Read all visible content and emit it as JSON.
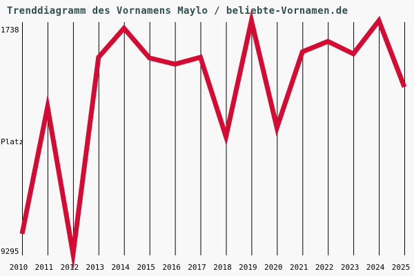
{
  "title": "Trenddiagramm des Vornamens Maylo / beliebte-Vornamen.de",
  "source_site": "beliebte-Vornamen.de",
  "name_shown": "Maylo",
  "colors": {
    "background": "#f8f8f8",
    "line": "#d40b33",
    "title_text": "#2f4f4f",
    "axis_text": "#000000",
    "gridline": "#000000"
  },
  "y_axis": {
    "top_label": "1738",
    "mid_label": "Platz",
    "bottom_label": "9295"
  },
  "chart_data": {
    "type": "line",
    "title": "Trenddiagramm des Vornamens Maylo / beliebte-Vornamen.de",
    "xlabel": "",
    "ylabel": "Platz",
    "x": [
      2010,
      2011,
      2012,
      2013,
      2014,
      2015,
      2016,
      2017,
      2018,
      2019,
      2020,
      2021,
      2022,
      2023,
      2024,
      2025
    ],
    "series": [
      {
        "name": "Maylo",
        "values": [
          8645,
          4533,
          9295,
          2923,
          1984,
          2945,
          3147,
          2923,
          5495,
          1738,
          5204,
          2744,
          2409,
          2811,
          1738,
          3885
        ]
      }
    ],
    "ylim": [
      1738,
      9295
    ],
    "y_axis_inverted_best_rank_on_top": true,
    "grid": "vertical-only",
    "legend_position": "none"
  }
}
